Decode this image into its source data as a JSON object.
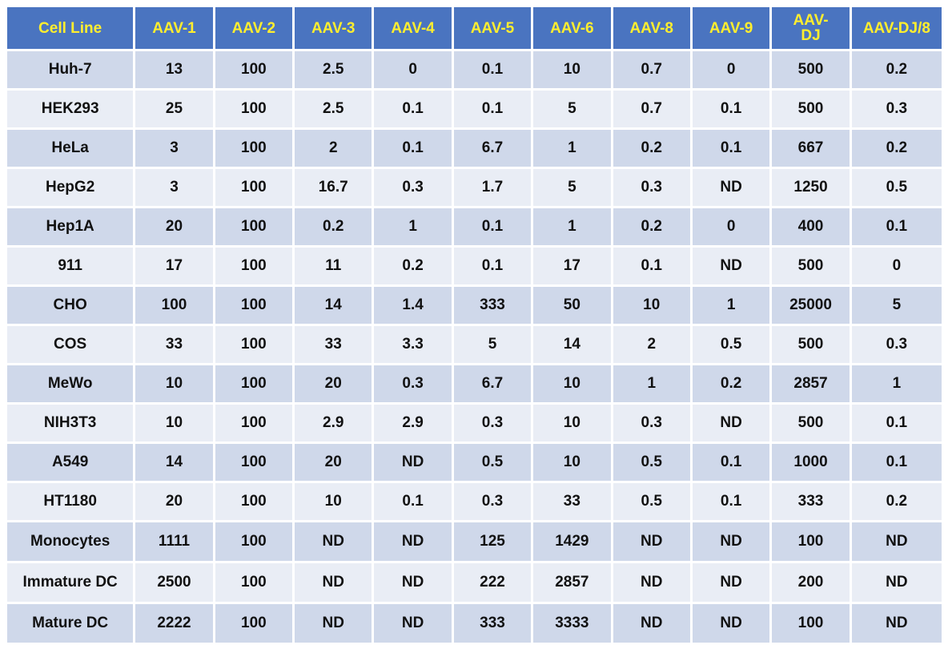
{
  "chart_data": {
    "type": "table",
    "title": "",
    "columns": [
      "Cell Line",
      "AAV-1",
      "AAV-2",
      "AAV-3",
      "AAV-4",
      "AAV-5",
      "AAV-6",
      "AAV-8",
      "AAV-9",
      "AAV-\nDJ",
      "AAV-DJ/8"
    ],
    "rows": [
      [
        "Huh-7",
        "13",
        "100",
        "2.5",
        "0",
        "0.1",
        "10",
        "0.7",
        "0",
        "500",
        "0.2"
      ],
      [
        "HEK293",
        "25",
        "100",
        "2.5",
        "0.1",
        "0.1",
        "5",
        "0.7",
        "0.1",
        "500",
        "0.3"
      ],
      [
        "HeLa",
        "3",
        "100",
        "2",
        "0.1",
        "6.7",
        "1",
        "0.2",
        "0.1",
        "667",
        "0.2"
      ],
      [
        "HepG2",
        "3",
        "100",
        "16.7",
        "0.3",
        "1.7",
        "5",
        "0.3",
        "ND",
        "1250",
        "0.5"
      ],
      [
        "Hep1A",
        "20",
        "100",
        "0.2",
        "1",
        "0.1",
        "1",
        "0.2",
        "0",
        "400",
        "0.1"
      ],
      [
        "911",
        "17",
        "100",
        "11",
        "0.2",
        "0.1",
        "17",
        "0.1",
        "ND",
        "500",
        "0"
      ],
      [
        "CHO",
        "100",
        "100",
        "14",
        "1.4",
        "333",
        "50",
        "10",
        "1",
        "25000",
        "5"
      ],
      [
        "COS",
        "33",
        "100",
        "33",
        "3.3",
        "5",
        "14",
        "2",
        "0.5",
        "500",
        "0.3"
      ],
      [
        "MeWo",
        "10",
        "100",
        "20",
        "0.3",
        "6.7",
        "10",
        "1",
        "0.2",
        "2857",
        "1"
      ],
      [
        "NIH3T3",
        "10",
        "100",
        "2.9",
        "2.9",
        "0.3",
        "10",
        "0.3",
        "ND",
        "500",
        "0.1"
      ],
      [
        "A549",
        "14",
        "100",
        "20",
        "ND",
        "0.5",
        "10",
        "0.5",
        "0.1",
        "1000",
        "0.1"
      ],
      [
        "HT1180",
        "20",
        "100",
        "10",
        "0.1",
        "0.3",
        "33",
        "0.5",
        "0.1",
        "333",
        "0.2"
      ],
      [
        "Monocytes",
        "1111",
        "100",
        "ND",
        "ND",
        "125",
        "1429",
        "ND",
        "ND",
        "100",
        "ND"
      ],
      [
        "Immature DC",
        "2500",
        "100",
        "ND",
        "ND",
        "222",
        "2857",
        "ND",
        "ND",
        "200",
        "ND"
      ],
      [
        "Mature DC",
        "2222",
        "100",
        "ND",
        "ND",
        "333",
        "3333",
        "ND",
        "ND",
        "100",
        "ND"
      ]
    ],
    "colors": {
      "header_bg": "#4a74c0",
      "header_text": "#ffee2e",
      "row_dark": "#cfd8ea",
      "row_light": "#e9edf5",
      "cell_text": "#111111"
    }
  }
}
